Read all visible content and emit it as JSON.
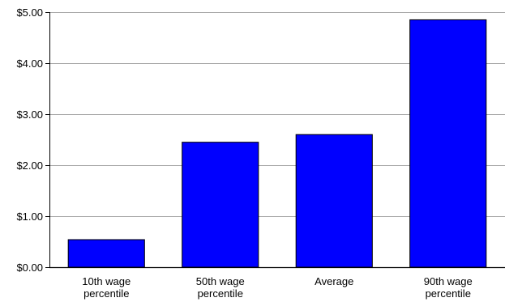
{
  "chart_data": {
    "type": "bar",
    "categories": [
      [
        "10th wage",
        "percentile"
      ],
      [
        "50th wage",
        "percentile"
      ],
      [
        "Average"
      ],
      [
        "90th wage",
        "percentile"
      ]
    ],
    "values": [
      0.54,
      2.45,
      2.6,
      4.85
    ],
    "y_ticks": [
      0,
      1,
      2,
      3,
      4,
      5
    ],
    "y_tick_labels": [
      "$0.00",
      "$1.00",
      "$2.00",
      "$3.00",
      "$4.00",
      "$5.00"
    ],
    "ylim": [
      0,
      5
    ],
    "grid": true,
    "legend": "none",
    "title": "",
    "xlabel": "",
    "ylabel": "",
    "colors": {
      "bar_fill": "#0000ff",
      "bar_stroke": "#000000",
      "grid": "#a6a6a6",
      "axis": "#000000"
    }
  }
}
